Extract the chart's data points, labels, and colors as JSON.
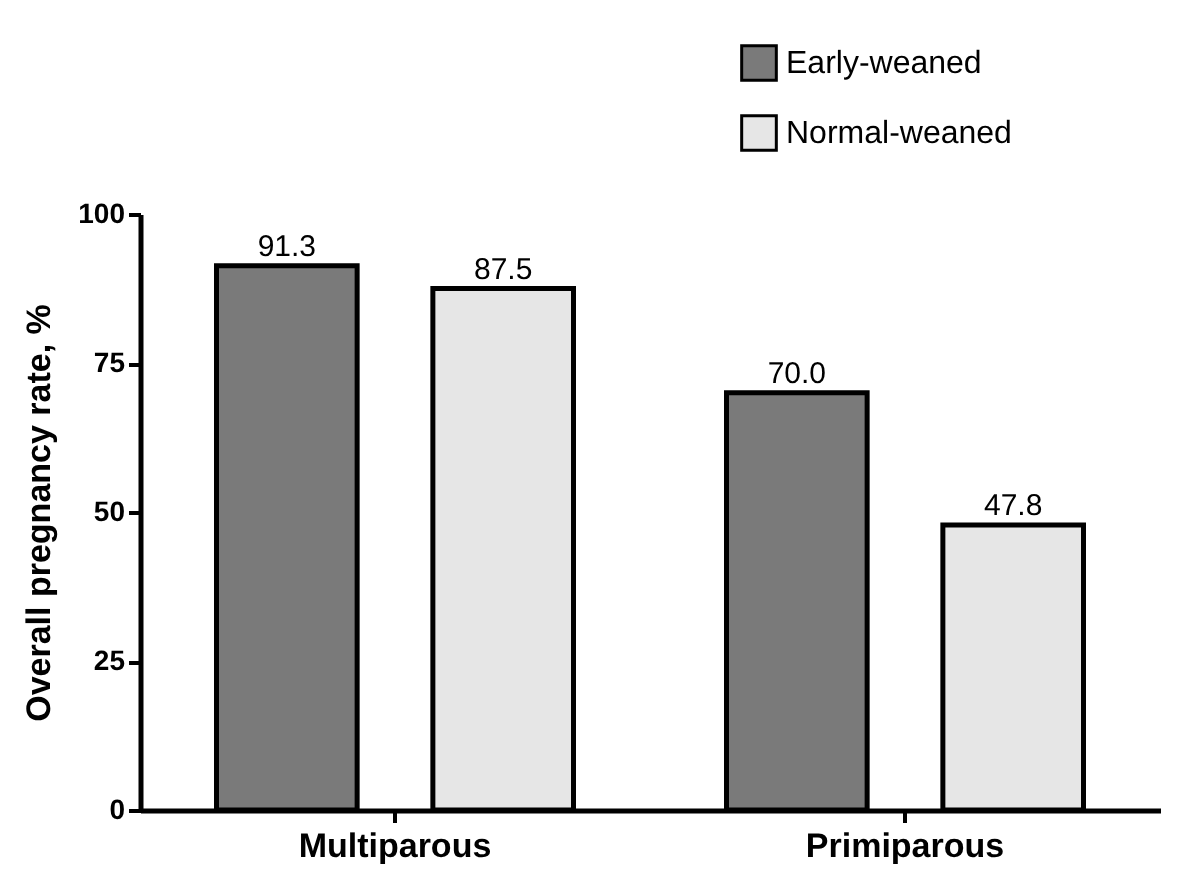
{
  "chart_data": {
    "type": "bar",
    "ylabel": "Overall pregnancy rate, %",
    "categories": [
      "Multiparous",
      "Primiparous"
    ],
    "series": [
      {
        "name": "Early-weaned",
        "color": "#7a7a7a",
        "values": [
          91.3,
          70.0
        ]
      },
      {
        "name": "Normal-weaned",
        "color": "#e6e6e6",
        "values": [
          87.5,
          47.8
        ]
      }
    ],
    "value_labels": [
      "91.3",
      "87.5",
      "70.0",
      "47.8"
    ],
    "ylim": [
      0,
      100
    ],
    "yticks": [
      0,
      25,
      50,
      75,
      100
    ],
    "grid": false,
    "legend": "top right"
  }
}
